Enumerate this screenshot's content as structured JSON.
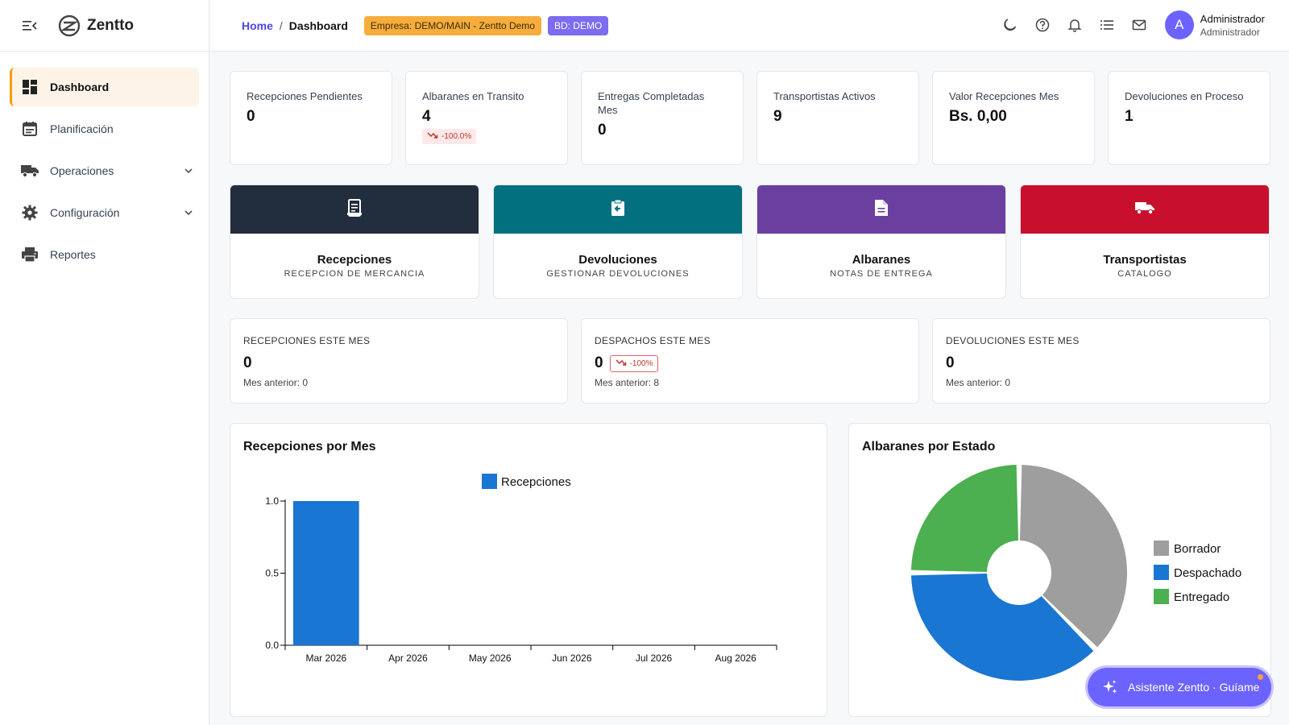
{
  "brand": {
    "name": "Zentto"
  },
  "sidebar": {
    "items": [
      {
        "label": "Dashboard",
        "icon": "dashboard-icon",
        "active": true
      },
      {
        "label": "Planificación",
        "icon": "calendar-icon"
      },
      {
        "label": "Operaciones",
        "icon": "truck-icon",
        "expandable": true
      },
      {
        "label": "Configuración",
        "icon": "gear-icon",
        "expandable": true
      },
      {
        "label": "Reportes",
        "icon": "printer-icon"
      }
    ]
  },
  "header": {
    "breadcrumb": {
      "home": "Home",
      "separator": "/",
      "current": "Dashboard"
    },
    "badge_empresa": "Empresa: DEMO/MAIN - Zentto Demo",
    "badge_bd": "BD: DEMO",
    "icons": [
      "moon-icon",
      "help-icon",
      "bell-icon",
      "list-icon",
      "mail-icon"
    ],
    "user": {
      "initial": "A",
      "name": "Administrador",
      "role": "Administrador"
    }
  },
  "kpis": [
    {
      "label": "Recepciones Pendientes",
      "value": "0"
    },
    {
      "label": "Albaranes en Transito",
      "value": "4",
      "trend": "-100.0%"
    },
    {
      "label": "Entregas Completadas Mes",
      "value": "0"
    },
    {
      "label": "Transportistas Activos",
      "value": "9"
    },
    {
      "label": "Valor Recepciones Mes",
      "value": "Bs. 0,00"
    },
    {
      "label": "Devoluciones en Proceso",
      "value": "1"
    }
  ],
  "tiles": [
    {
      "title": "Recepciones",
      "subtitle": "RECEPCION DE MERCANCIA",
      "color": "#222d3d",
      "icon": "receipt-icon"
    },
    {
      "title": "Devoluciones",
      "subtitle": "GESTIONAR DEVOLUCIONES",
      "color": "#03707f",
      "icon": "return-icon"
    },
    {
      "title": "Albaranes",
      "subtitle": "NOTAS DE ENTREGA",
      "color": "#6b3fa0",
      "icon": "document-icon"
    },
    {
      "title": "Transportistas",
      "subtitle": "CATALOGO",
      "color": "#c8102e",
      "icon": "truck-icon"
    }
  ],
  "month_stats": [
    {
      "label": "RECEPCIONES ESTE MES",
      "value": "0",
      "previous": "Mes anterior: 0"
    },
    {
      "label": "DESPACHOS ESTE MES",
      "value": "0",
      "trend": "-100%",
      "previous": "Mes anterior: 8"
    },
    {
      "label": "DEVOLUCIONES ESTE MES",
      "value": "0",
      "previous": "Mes anterior: 0"
    }
  ],
  "chart_data": [
    {
      "type": "bar",
      "title": "Recepciones por Mes",
      "categories": [
        "Mar 2026",
        "Apr 2026",
        "May 2026",
        "Jun 2026",
        "Jul 2026",
        "Aug 2026"
      ],
      "series": [
        {
          "name": "Recepciones",
          "values": [
            1,
            0,
            0,
            0,
            0,
            0
          ],
          "color": "#1976d2"
        }
      ],
      "ylim": [
        0,
        1
      ],
      "yticks": [
        "0.0",
        "0.5",
        "1.0"
      ],
      "legend": "top-center"
    },
    {
      "type": "pie",
      "title": "Albaranes por Estado",
      "labels": [
        "Borrador",
        "Despachado",
        "Entregado"
      ],
      "values": [
        3,
        3,
        2
      ],
      "colors": [
        "#9e9e9e",
        "#1976d2",
        "#4caf50"
      ],
      "legend": "right"
    }
  ],
  "assistant": {
    "label": "Asistente Zentto · Guíame",
    "icon": "sparkle-icon"
  }
}
